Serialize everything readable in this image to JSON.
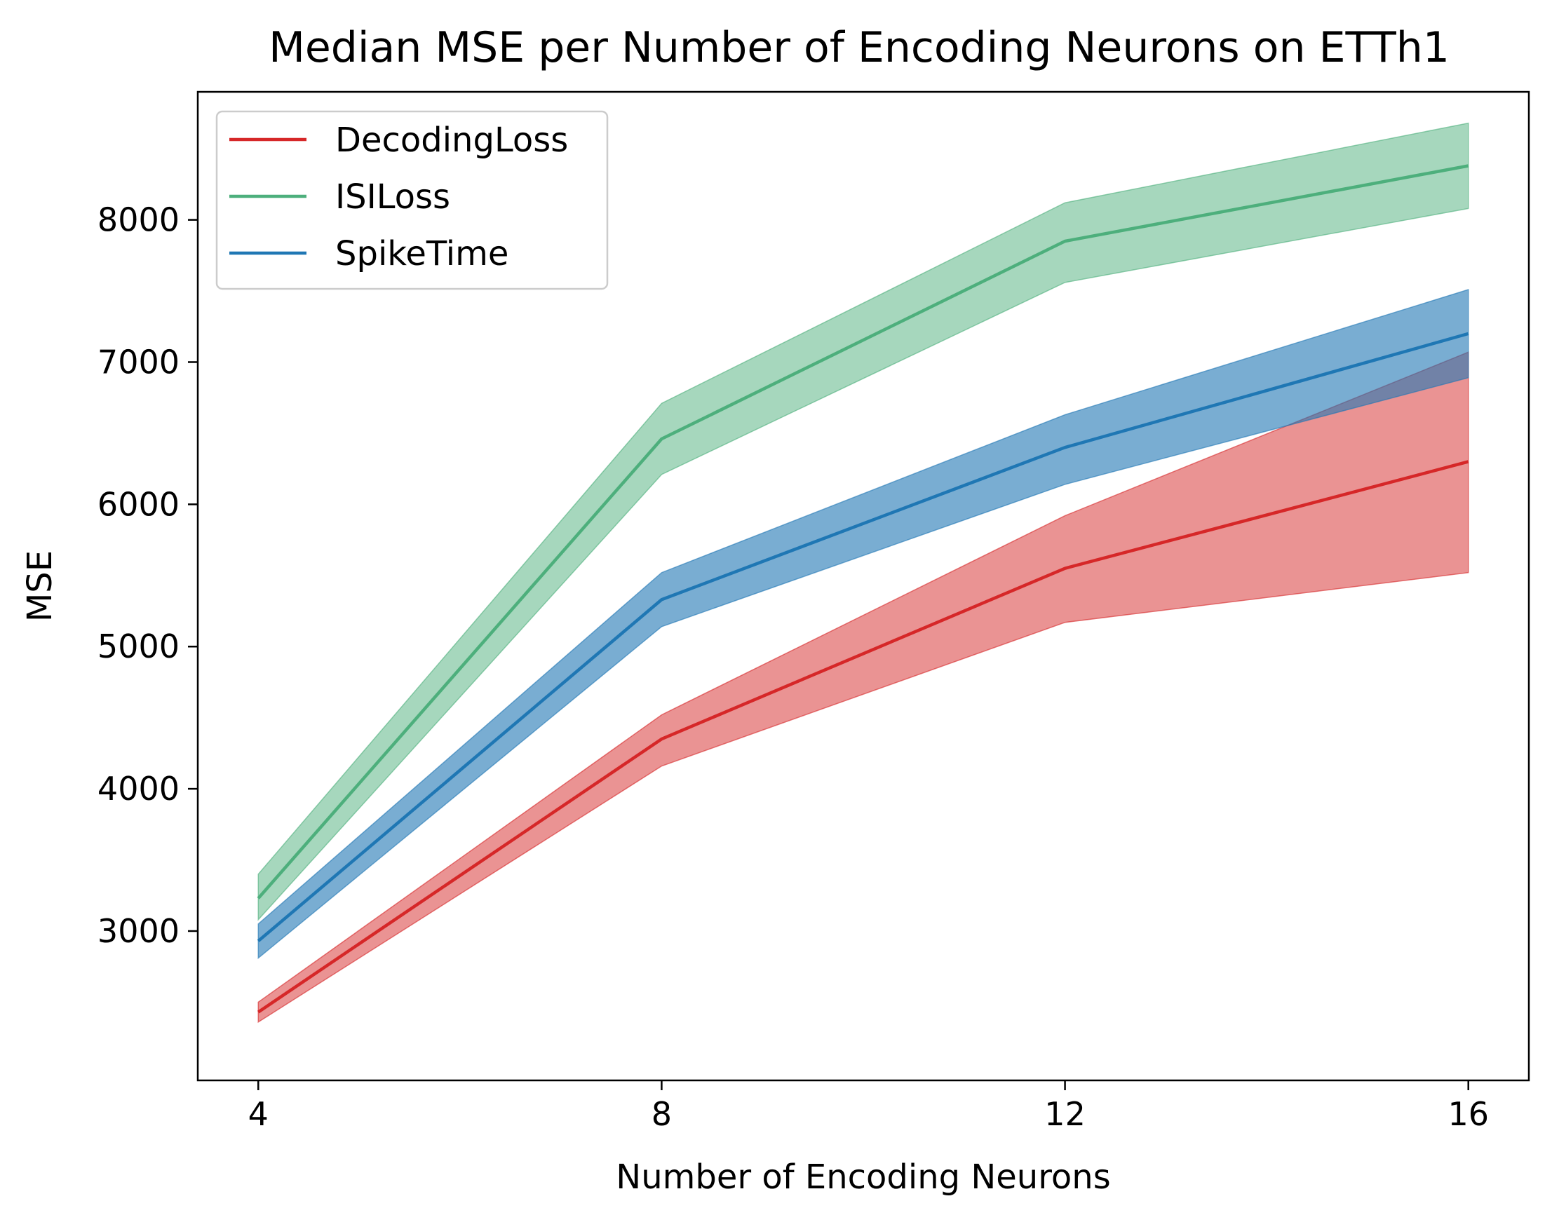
{
  "chart_data": {
    "type": "line",
    "title": "Median MSE per Number of Encoding Neurons on ETTh1",
    "xlabel": "Number of Encoding Neurons",
    "ylabel": "MSE",
    "x": [
      4,
      8,
      12,
      16
    ],
    "xlim": [
      3.4,
      16.6
    ],
    "ylim": [
      1950,
      8900
    ],
    "xticks": [
      4,
      8,
      12,
      16
    ],
    "yticks": [
      3000,
      4000,
      5000,
      6000,
      7000,
      8000
    ],
    "legend_position": "top-left",
    "series": [
      {
        "name": "DecodingLoss",
        "color": "#d62728",
        "fill_opacity": 0.5,
        "values": [
          2430,
          4350,
          5550,
          6300
        ],
        "lower": [
          2360,
          4160,
          5170,
          5520
        ],
        "upper": [
          2500,
          4520,
          5920,
          7070
        ]
      },
      {
        "name": "ISILoss",
        "color": "#4daf7c",
        "fill_opacity": 0.5,
        "values": [
          3230,
          6460,
          7850,
          8380
        ],
        "lower": [
          3080,
          6210,
          7560,
          8080
        ],
        "upper": [
          3400,
          6710,
          8120,
          8680
        ]
      },
      {
        "name": "SpikeTime",
        "color": "#1f77b4",
        "fill_opacity": 0.6,
        "values": [
          2930,
          5330,
          6400,
          7200
        ],
        "lower": [
          2810,
          5140,
          6140,
          6890
        ],
        "upper": [
          3050,
          5520,
          6630,
          7510
        ]
      }
    ]
  }
}
